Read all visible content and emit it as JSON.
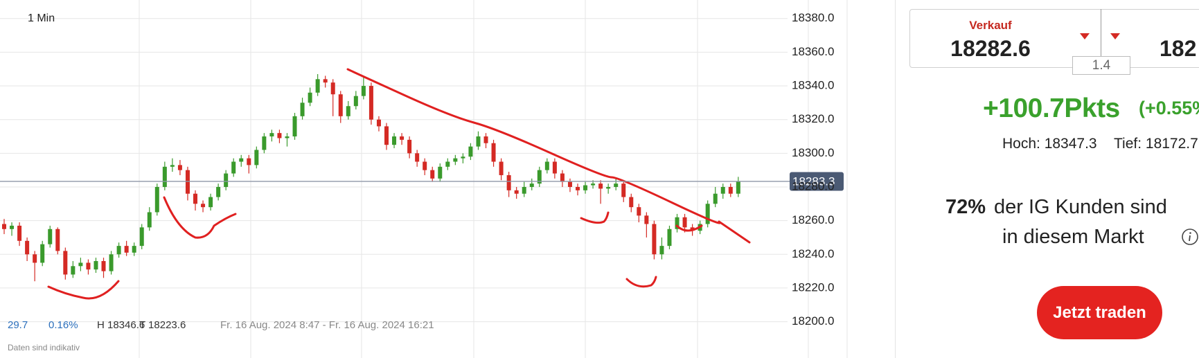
{
  "chart_data": {
    "type": "candlestick",
    "timeframe": "1 Min",
    "open": [
      18258,
      18255,
      18257,
      18248,
      18240,
      18235,
      18246,
      18255,
      18242,
      18228,
      18233,
      18235,
      18231,
      18236,
      18230,
      18240,
      18245,
      18241,
      18245,
      18256,
      18265,
      18280,
      18292,
      18293,
      18290,
      18276,
      18270,
      18268,
      18274,
      18280,
      18288,
      18295,
      18297,
      18293,
      18302,
      18310,
      18312,
      18309,
      18310,
      18322,
      18330,
      18336,
      18344,
      18342,
      18335,
      18322,
      18328,
      18334,
      18340,
      18320,
      18316,
      18305,
      18310,
      18308,
      18300,
      18295,
      18290,
      18285,
      18292,
      18295,
      18297,
      18298,
      18304,
      18310,
      18306,
      18295,
      18287,
      18278,
      18276,
      18280,
      18282,
      18290,
      18295,
      18288,
      18283,
      18280,
      18278,
      18281,
      18282,
      18279,
      18280,
      18282,
      18274,
      18268,
      18263,
      18258,
      18240,
      18245,
      18255,
      18262,
      18256,
      18254,
      18258,
      18270,
      18276,
      18280,
      18276
    ],
    "high": [
      18261,
      18259,
      18259,
      18250,
      18242,
      18248,
      18257,
      18256,
      18244,
      18236,
      18238,
      18237,
      18238,
      18238,
      18242,
      18247,
      18248,
      18247,
      18258,
      18268,
      18282,
      18295,
      18297,
      18296,
      18292,
      18278,
      18272,
      18276,
      18282,
      18290,
      18297,
      18299,
      18299,
      18304,
      18312,
      18314,
      18314,
      18312,
      18324,
      18333,
      18339,
      18347,
      18346,
      18344,
      18337,
      18331,
      18337,
      18345,
      18342,
      18322,
      18318,
      18312,
      18312,
      18310,
      18302,
      18297,
      18292,
      18294,
      18297,
      18299,
      18300,
      18306,
      18313,
      18312,
      18308,
      18297,
      18289,
      18280,
      18283,
      18285,
      18292,
      18297,
      18297,
      18290,
      18285,
      18282,
      18283,
      18284,
      18284,
      18282,
      18285,
      18284,
      18276,
      18270,
      18265,
      18260,
      18250,
      18257,
      18264,
      18264,
      18258,
      18260,
      18272,
      18280,
      18282,
      18282,
      18286
    ],
    "low": [
      18252,
      18251,
      18245,
      18236,
      18224,
      18233,
      18244,
      18240,
      18225,
      18226,
      18230,
      18228,
      18229,
      18226,
      18228,
      18238,
      18239,
      18239,
      18243,
      18254,
      18263,
      18278,
      18289,
      18287,
      18272,
      18266,
      18265,
      18266,
      18272,
      18278,
      18286,
      18292,
      18288,
      18291,
      18300,
      18307,
      18306,
      18304,
      18308,
      18320,
      18328,
      18334,
      18339,
      18322,
      18318,
      18320,
      18326,
      18332,
      18317,
      18313,
      18302,
      18303,
      18305,
      18297,
      18292,
      18287,
      18283,
      18283,
      18290,
      18293,
      18294,
      18296,
      18302,
      18303,
      18292,
      18284,
      18274,
      18273,
      18274,
      18278,
      18280,
      18288,
      18285,
      18280,
      18277,
      18275,
      18276,
      18279,
      18270,
      18276,
      18278,
      18271,
      18265,
      18259,
      18250,
      18237,
      18237,
      18243,
      18253,
      18253,
      18251,
      18252,
      18256,
      18268,
      18273,
      18274,
      18274
    ],
    "close": [
      18255,
      18257,
      18248,
      18240,
      18235,
      18246,
      18255,
      18242,
      18228,
      18233,
      18235,
      18231,
      18236,
      18230,
      18240,
      18245,
      18241,
      18245,
      18256,
      18265,
      18280,
      18292,
      18293,
      18290,
      18276,
      18270,
      18268,
      18274,
      18280,
      18288,
      18295,
      18297,
      18293,
      18302,
      18310,
      18312,
      18309,
      18310,
      18322,
      18330,
      18336,
      18344,
      18342,
      18335,
      18322,
      18328,
      18334,
      18340,
      18320,
      18316,
      18305,
      18310,
      18308,
      18300,
      18295,
      18290,
      18285,
      18292,
      18295,
      18297,
      18298,
      18304,
      18310,
      18306,
      18295,
      18287,
      18278,
      18276,
      18280,
      18282,
      18290,
      18295,
      18288,
      18283,
      18280,
      18278,
      18281,
      18282,
      18279,
      18280,
      18282,
      18274,
      18268,
      18263,
      18258,
      18240,
      18245,
      18255,
      18262,
      18256,
      18254,
      18258,
      18270,
      18276,
      18280,
      18276,
      18283.3
    ],
    "up_color": "#3a9a2c",
    "down_color": "#d42a24",
    "ylim": [
      18180.5,
      18391
    ],
    "yticks": [
      {
        "value": 18200,
        "label": "18200.0"
      },
      {
        "value": 18220,
        "label": "18220.0"
      },
      {
        "value": 18240,
        "label": "18240.0"
      },
      {
        "value": 18260,
        "label": "18260.0"
      },
      {
        "value": 18280,
        "label": "18280.0"
      },
      {
        "value": 18300,
        "label": "18300.0"
      },
      {
        "value": 18320,
        "label": "18320.0"
      },
      {
        "value": 18340,
        "label": "18340.0"
      },
      {
        "value": 18360,
        "label": "18360.0"
      },
      {
        "value": 18380,
        "label": "18380.0"
      }
    ],
    "grid": true,
    "last_price": 18283.3
  },
  "chart_footer": {
    "change": "29.7",
    "change_pct": "0.16%",
    "high": "H 18346.6",
    "low": "T 18223.6",
    "range": "Fr. 16 Aug. 2024 8:47 - Fr. 16 Aug. 2024 16:21",
    "disclaimer": "Daten sind indikativ"
  },
  "panel": {
    "sell_label": "Verkauf",
    "sell_price": "18282.6",
    "spread": "1.4",
    "buy_price": "182",
    "change_points": "+100.7Pkts",
    "change_percent": "(+0.55%",
    "high": "Hoch: 18347.3",
    "low": "Tief: 18172.7",
    "sentiment_pct": "72%",
    "sentiment_text": "der IG Kunden sind",
    "sentiment_text2": "in diesem Markt",
    "button": "Jetzt traden"
  }
}
